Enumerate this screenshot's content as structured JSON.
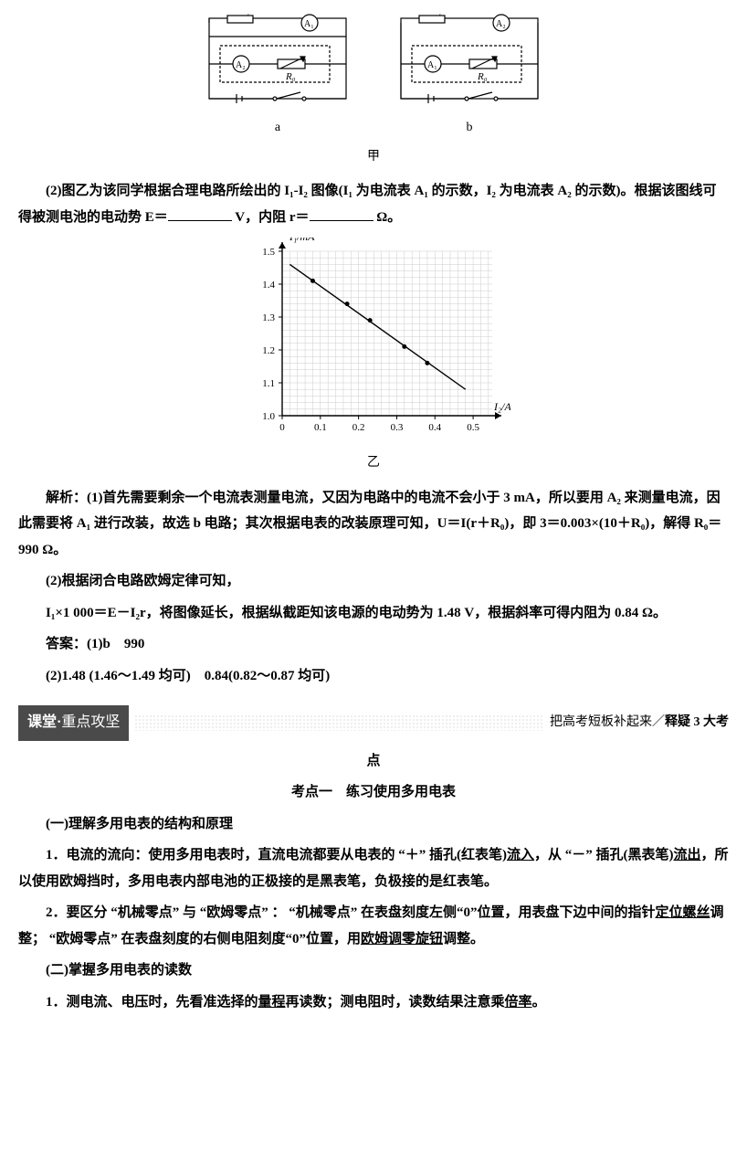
{
  "circuits": {
    "a_label": "a",
    "b_label": "b",
    "jia_label": "甲",
    "R1": "R₁",
    "A1": "A₁",
    "A2": "A₂",
    "R0": "R₀"
  },
  "q2": {
    "text_pre": "(2)图乙为该同学根据合理电路所绘出的 I₁-I₂ 图像(I₁ 为电流表 A₁ 的示数，I₂ 为电流表 A₂ 的示数)。根据该图线可得被测电池的电动势 E＝",
    "unit_v": " V，内阻 r＝",
    "unit_o": " Ω。"
  },
  "chart": {
    "type": "scatter-line",
    "xlabel": "I₂/A",
    "ylabel": "I₁/mA",
    "xlim": [
      0,
      0.55
    ],
    "ylim": [
      1.0,
      1.5
    ],
    "xticks": [
      0,
      0.1,
      0.2,
      0.3,
      0.4,
      0.5
    ],
    "yticks": [
      1.0,
      1.1,
      1.2,
      1.3,
      1.4,
      1.5
    ],
    "grid_minor_x": 0.02,
    "grid_minor_y": 0.02,
    "points": [
      {
        "x": 0.08,
        "y": 1.41
      },
      {
        "x": 0.17,
        "y": 1.34
      },
      {
        "x": 0.23,
        "y": 1.29
      },
      {
        "x": 0.32,
        "y": 1.21
      },
      {
        "x": 0.38,
        "y": 1.16
      }
    ],
    "line": {
      "x1": 0.02,
      "y1": 1.46,
      "x2": 0.48,
      "y2": 1.08
    },
    "colors": {
      "bg": "#ffffff",
      "axis": "#000000",
      "grid": "#cccccc",
      "point": "#000000",
      "line": "#000000"
    },
    "yi_label": "乙"
  },
  "ans": {
    "p1": "解析：(1)首先需要剩余一个电流表测量电流，又因为电路中的电流不会小于 3 mA，所以要用 A₂ 来测量电流，因此需要将 A₁ 进行改装，故选 b 电路；其次根据电表的改装原理可知，U＝I(r＋R₀)，即 3＝0.003×(10＋R₀)，解得 R₀＝990 Ω。",
    "p2": "(2)根据闭合电路欧姆定律可知，",
    "p3": "I₁×1 000＝E－I₂r，将图像延长，根据纵截距知该电源的电动势为 1.48 V，根据斜率可得内阻为 0.84 Ω。",
    "p4": "答案：(1)b　990",
    "p5": "(2)1.48 (1.46～1.49 均可)　0.84(0.82～0.87 均可)"
  },
  "sect": {
    "left_main": "课堂",
    "left_dot": "·",
    "left_sub": "重点攻坚",
    "right_pre": "把高考短板补起来／",
    "right_bold": "释疑 3 大考",
    "center1": "点",
    "center2": "考点一　练习使用多用电表"
  },
  "body": {
    "h1": "(一)理解多用电表的结构和原理",
    "p1a": "1．电流的流向：使用多用电表时，直流电流都要从电表的 “＋” 插孔(红表笔)",
    "p1u1": "流入",
    "p1b": "，从 “－” 插孔(黑表笔)",
    "p1u2": "流出",
    "p1c": "，所以使用欧姆挡时，多用电表内部电池的正极接的是黑表笔，负极接的是红表笔。",
    "p2a": "2．要区分 “机械零点” 与 “欧姆零点” ： “机械零点” 在表盘刻度左侧“0”位置，用表盘下边中间的指针",
    "p2u1": "定位螺丝",
    "p2b": "调整； “欧姆零点” 在表盘刻度的右侧电阻刻度“0”位置，用",
    "p2u2": "欧姆调零旋钮",
    "p2c": "调整。",
    "h2": "(二)掌握多用电表的读数",
    "p3a": "1．测电流、电压时，先看准选择的",
    "p3u1": "量程",
    "p3b": "再读数；测电阻时，读数结果注意乘",
    "p3u2": "倍率",
    "p3c": "。"
  }
}
